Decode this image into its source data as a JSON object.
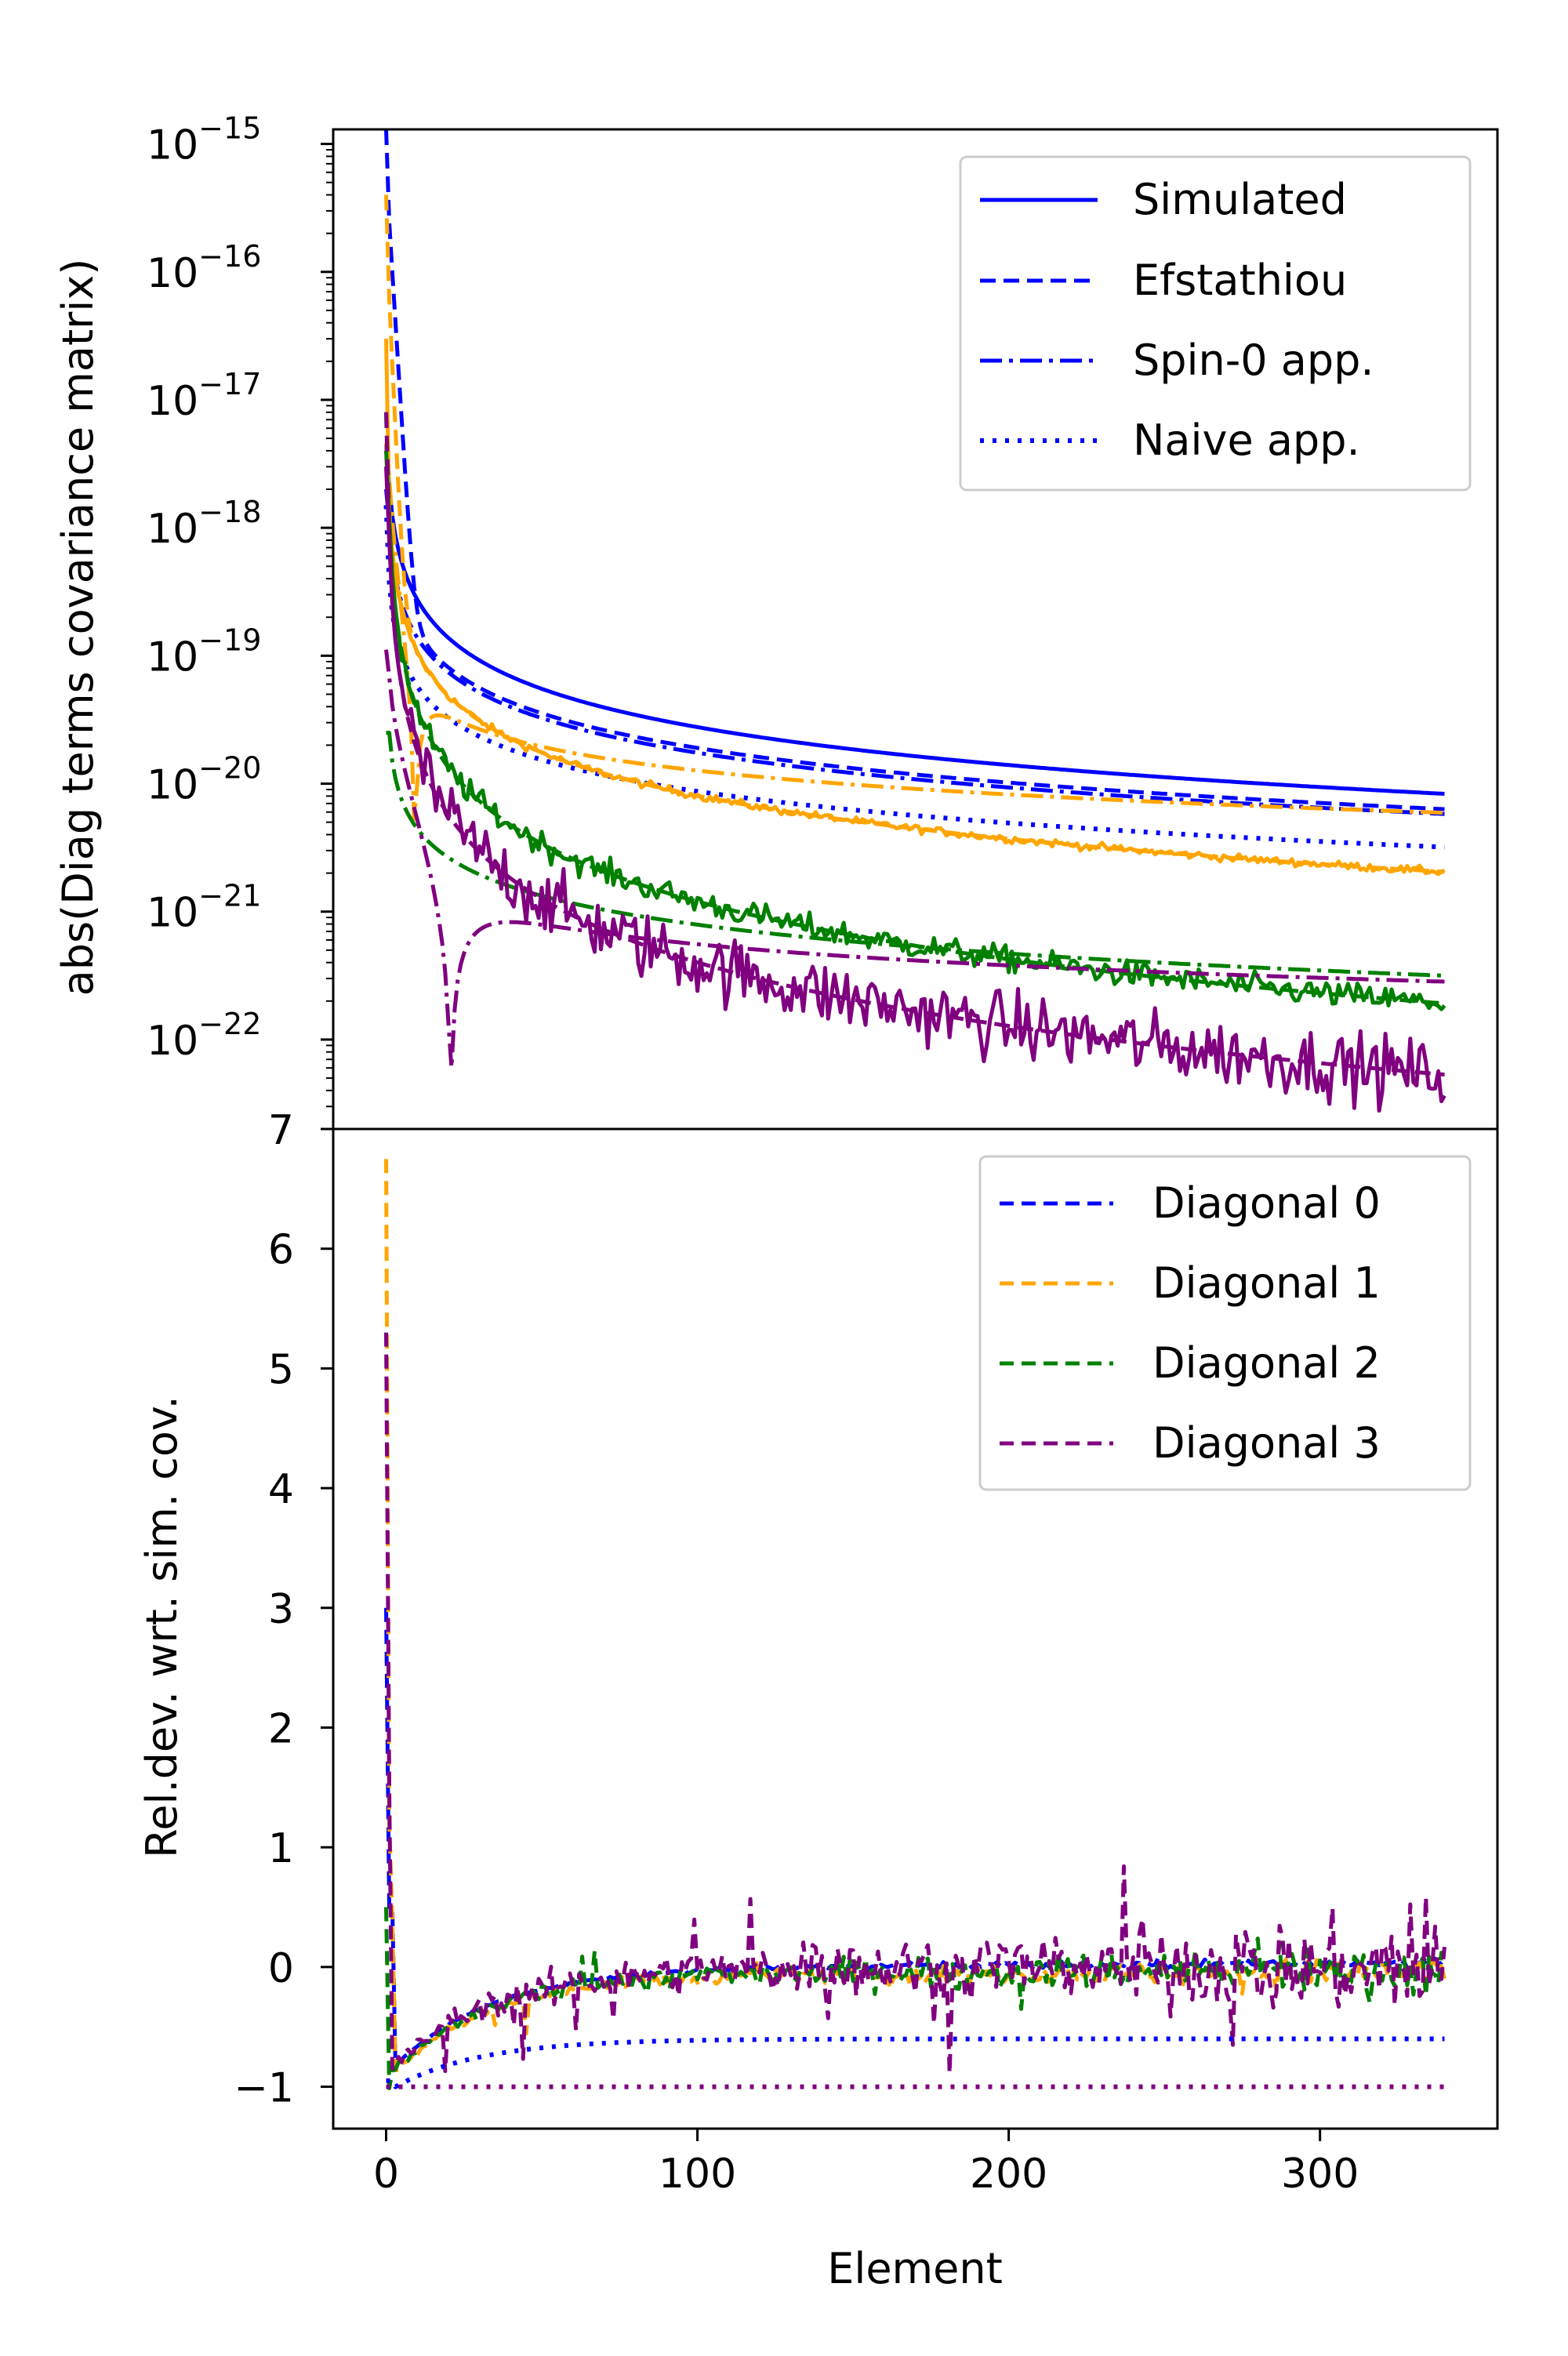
{
  "colors": {
    "blue": "#0000ff",
    "orange": "#ffa500",
    "green": "#008000",
    "purple": "#800080"
  },
  "chart_data": [
    {
      "type": "line",
      "panel": "top",
      "title": "",
      "xlabel": "",
      "ylabel": "abs(Diag terms covariance matrix)",
      "yscale": "log",
      "xlim": [
        -17,
        357
      ],
      "ylim": [
        2e-23,
        1.3e-15
      ],
      "yticks": [
        {
          "base": "10",
          "exp": "−15"
        },
        {
          "base": "10",
          "exp": "−16"
        },
        {
          "base": "10",
          "exp": "−17"
        },
        {
          "base": "10",
          "exp": "−18"
        },
        {
          "base": "10",
          "exp": "−19"
        },
        {
          "base": "10",
          "exp": "−20"
        },
        {
          "base": "10",
          "exp": "−21"
        },
        {
          "base": "10",
          "exp": "−22"
        }
      ],
      "legend": {
        "placement": "top-right",
        "entries": [
          {
            "label": "Simulated",
            "style": "solid"
          },
          {
            "label": "Efstathiou",
            "style": "dashed"
          },
          {
            "label": "Spin-0 app.",
            "style": "dashdot"
          },
          {
            "label": "Naive app.",
            "style": "dotted"
          }
        ]
      },
      "series_summary": [
        {
          "color": "blue",
          "style": "solid",
          "x": [
            0,
            10,
            30,
            100,
            200,
            340
          ],
          "y": [
            2e-18,
            2.5e-19,
            4e-20,
            1e-20,
            4e-21,
            2.3e-21
          ]
        },
        {
          "color": "blue",
          "style": "dashed",
          "x": [
            0,
            10,
            30,
            100,
            200,
            340
          ],
          "y": [
            7e-16,
            8e-19,
            4e-20,
            1e-20,
            4e-21,
            2.3e-21
          ]
        },
        {
          "color": "blue",
          "style": "dotted",
          "x": [
            0,
            10,
            30,
            100,
            200,
            340
          ],
          "y": [
            1.5e-18,
            9e-20,
            1.8e-20,
            4.5e-21,
            1.8e-21,
            9e-22
          ]
        },
        {
          "color": "orange",
          "style": "solid",
          "x": [
            0,
            10,
            30,
            100,
            200,
            340
          ],
          "y": [
            3e-17,
            1.5e-19,
            2e-20,
            4e-21,
            1.5e-21,
            7e-22
          ]
        },
        {
          "color": "green",
          "style": "solid",
          "x": [
            0,
            10,
            30,
            100,
            200,
            340
          ],
          "y": [
            4e-18,
            1e-19,
            5e-21,
            5e-22,
            2.5e-22,
            1.4e-22
          ]
        },
        {
          "color": "purple",
          "style": "solid",
          "x": [
            0,
            10,
            30,
            100,
            200,
            340
          ],
          "y": [
            3e-18,
            1e-20,
            2.5e-21,
            3e-22,
            1.3e-22,
            7e-23
          ]
        }
      ]
    },
    {
      "type": "line",
      "panel": "bottom",
      "title": "",
      "xlabel": "Element",
      "ylabel": "Rel.dev. wrt. sim. cov.",
      "xlim": [
        -17,
        357
      ],
      "ylim": [
        -1.35,
        7.0
      ],
      "xticks": [
        "0",
        "100",
        "200",
        "300"
      ],
      "xtick_values": [
        0,
        100,
        200,
        300
      ],
      "yticks": [
        "−1",
        "0",
        "1",
        "2",
        "3",
        "4",
        "5",
        "6",
        "7"
      ],
      "ytick_values": [
        -1,
        0,
        1,
        2,
        3,
        4,
        5,
        6,
        7
      ],
      "legend": {
        "placement": "top-right",
        "entries": [
          {
            "label": "Diagonal 0",
            "color": "blue"
          },
          {
            "label": "Diagonal 1",
            "color": "orange"
          },
          {
            "label": "Diagonal 2",
            "color": "green"
          },
          {
            "label": "Diagonal 3",
            "color": "purple"
          }
        ]
      },
      "series_summary": [
        {
          "color": "orange",
          "style": "dashed",
          "x": [
            0,
            1,
            5,
            20,
            100,
            340
          ],
          "y": [
            6.75,
            2.0,
            -0.8,
            -0.6,
            -0.15,
            0.0
          ]
        },
        {
          "color": "purple",
          "style": "dashed",
          "x": [
            0,
            1,
            5,
            20,
            100,
            340
          ],
          "y": [
            5.3,
            0.5,
            -0.7,
            -0.7,
            -0.1,
            0.3
          ]
        },
        {
          "color": "blue",
          "style": "dotted",
          "x": [
            0,
            30,
            80,
            200,
            340
          ],
          "y": [
            -1.0,
            -0.8,
            -0.65,
            -0.6,
            -0.6
          ]
        },
        {
          "color": "purple",
          "style": "dotted",
          "x": [
            0,
            340
          ],
          "y": [
            -1.0,
            -1.0
          ]
        }
      ]
    }
  ]
}
